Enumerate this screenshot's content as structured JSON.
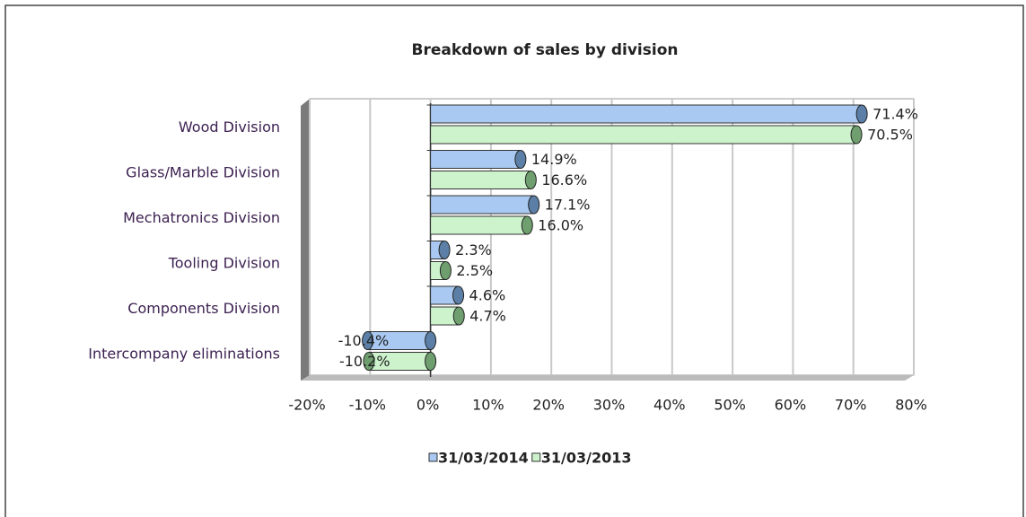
{
  "chart_data": {
    "type": "bar",
    "orientation": "horizontal",
    "title": "Breakdown of sales by division",
    "categories": [
      "Wood Division",
      "Glass/Marble Division",
      "Mechatronics Division",
      "Tooling Division",
      "Components Division",
      "Intercompany eliminations"
    ],
    "series": [
      {
        "name": "31/03/2014",
        "color": "#a9c9f2",
        "values": [
          71.4,
          14.9,
          17.1,
          2.3,
          4.6,
          -10.4
        ],
        "value_labels": [
          "71.4%",
          "14.9%",
          "17.1%",
          "2.3%",
          "4.6%",
          "-10.4%"
        ]
      },
      {
        "name": "31/03/2013",
        "color": "#cdf3cd",
        "values": [
          70.5,
          16.6,
          16.0,
          2.5,
          4.7,
          -10.2
        ],
        "value_labels": [
          "70.5%",
          "16.6%",
          "16.0%",
          "2.5%",
          "4.7%",
          "-10.2%"
        ]
      }
    ],
    "xlim": [
      -20,
      80
    ],
    "xticks": [
      {
        "value": -20,
        "label": "-20%"
      },
      {
        "value": -10,
        "label": "-10%"
      },
      {
        "value": 0,
        "label": "0%"
      },
      {
        "value": 10,
        "label": "10%"
      },
      {
        "value": 20,
        "label": "20%"
      },
      {
        "value": 30,
        "label": "30%"
      },
      {
        "value": 40,
        "label": "40%"
      },
      {
        "value": 50,
        "label": "50%"
      },
      {
        "value": 60,
        "label": "60%"
      },
      {
        "value": 70,
        "label": "70%"
      },
      {
        "value": 80,
        "label": "80%"
      }
    ],
    "grid": true,
    "legend": "bottom"
  }
}
